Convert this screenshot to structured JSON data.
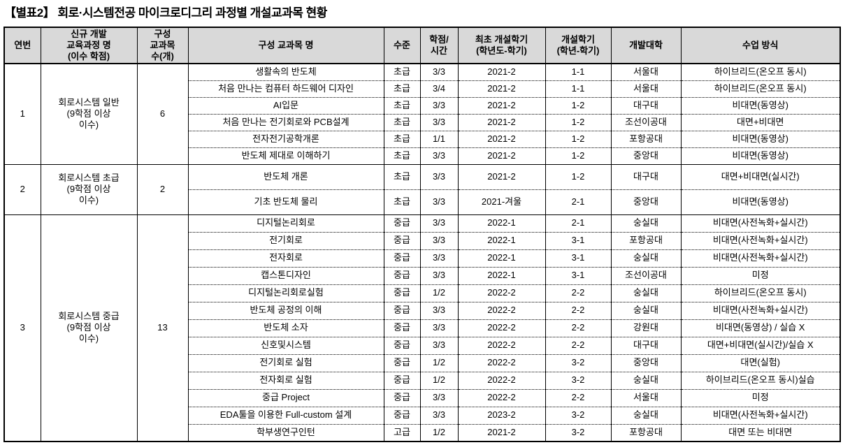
{
  "title": "【별표2】 회로·시스템전공 마이크로디그리 과정별 개설교과목 현황",
  "table": {
    "header": {
      "no": "연번",
      "program": "신규 개발\n교육과정 명\n(이수 학점)",
      "count": "구성\n교과목\n수(개)",
      "course": "구성 교과목 명",
      "level": "수준",
      "credit": "학점/\n시간",
      "first_term": "최초 개설학기\n(학년도-학기)",
      "term": "개설학기\n(학년-학기)",
      "univ": "개발대학",
      "method": "수업 방식"
    },
    "groups": [
      {
        "no": "1",
        "program": "회로시스템 일반\n(9학점 이상\n이수)",
        "count": "6",
        "courses": [
          {
            "name": "생활속의 반도체",
            "level": "초급",
            "credit": "3/3",
            "first_term": "2021-2",
            "term": "1-1",
            "univ": "서울대",
            "method": "하이브리드(온오프 동시)"
          },
          {
            "name": "처음 만나는 컴퓨터 하드웨어 디자인",
            "level": "초급",
            "credit": "3/4",
            "first_term": "2021-2",
            "term": "1-1",
            "univ": "서울대",
            "method": "하이브리드(온오프 동시)"
          },
          {
            "name": "AI입문",
            "level": "초급",
            "credit": "3/3",
            "first_term": "2021-2",
            "term": "1-2",
            "univ": "대구대",
            "method": "비대면(동영상)"
          },
          {
            "name": "처음 만나는 전기회로와 PCB설계",
            "level": "초급",
            "credit": "3/3",
            "first_term": "2021-2",
            "term": "1-2",
            "univ": "조선이공대",
            "method": "대면+비대면"
          },
          {
            "name": "전자전기공학개론",
            "level": "초급",
            "credit": "1/1",
            "first_term": "2021-2",
            "term": "1-2",
            "univ": "포항공대",
            "method": "비대면(동영상)"
          },
          {
            "name": "반도체 제대로 이해하기",
            "level": "초급",
            "credit": "3/3",
            "first_term": "2021-2",
            "term": "1-2",
            "univ": "중앙대",
            "method": "비대면(동영상)"
          }
        ]
      },
      {
        "no": "2",
        "program": "회로시스템 초급\n(9학점 이상\n이수)",
        "count": "2",
        "courses": [
          {
            "name": "반도체 개론",
            "level": "초급",
            "credit": "3/3",
            "first_term": "2021-2",
            "term": "1-2",
            "univ": "대구대",
            "method": "대면+비대면(실시간)"
          },
          {
            "name": "기초 반도체 물리",
            "level": "초급",
            "credit": "3/3",
            "first_term": "2021-겨울",
            "term": "2-1",
            "univ": "중앙대",
            "method": "비대면(동영상)"
          }
        ]
      },
      {
        "no": "3",
        "program": "회로시스템 중급\n(9학점 이상\n이수)",
        "count": "13",
        "courses": [
          {
            "name": "디지털논리회로",
            "level": "중급",
            "credit": "3/3",
            "first_term": "2022-1",
            "term": "2-1",
            "univ": "숭실대",
            "method": "비대면(사전녹화+실시간)"
          },
          {
            "name": "전기회로",
            "level": "중급",
            "credit": "3/3",
            "first_term": "2022-1",
            "term": "3-1",
            "univ": "포항공대",
            "method": "비대면(사전녹화+실시간)"
          },
          {
            "name": "전자회로",
            "level": "중급",
            "credit": "3/3",
            "first_term": "2022-1",
            "term": "3-1",
            "univ": "숭실대",
            "method": "비대면(사전녹화+실시간)"
          },
          {
            "name": "캡스톤디자인",
            "level": "중급",
            "credit": "3/3",
            "first_term": "2022-1",
            "term": "3-1",
            "univ": "조선이공대",
            "method": "미정"
          },
          {
            "name": "디지털논리회로실험",
            "level": "중급",
            "credit": "1/2",
            "first_term": "2022-2",
            "term": "2-2",
            "univ": "숭실대",
            "method": "하이브리드(온오프 동시)"
          },
          {
            "name": "반도체 공정의 이해",
            "level": "중급",
            "credit": "3/3",
            "first_term": "2022-2",
            "term": "2-2",
            "univ": "숭실대",
            "method": "비대면(사전녹화+실시간)"
          },
          {
            "name": "반도체 소자",
            "level": "중급",
            "credit": "3/3",
            "first_term": "2022-2",
            "term": "2-2",
            "univ": "강원대",
            "method": "비대면(동영상) / 실습 X"
          },
          {
            "name": "신호및시스템",
            "level": "중급",
            "credit": "3/3",
            "first_term": "2022-2",
            "term": "2-2",
            "univ": "대구대",
            "method": "대면+비대면(실시간)/실습 X"
          },
          {
            "name": "전기회로 실험",
            "level": "중급",
            "credit": "1/2",
            "first_term": "2022-2",
            "term": "3-2",
            "univ": "중앙대",
            "method": "대면(실험)"
          },
          {
            "name": "전자회로 실험",
            "level": "중급",
            "credit": "1/2",
            "first_term": "2022-2",
            "term": "3-2",
            "univ": "숭실대",
            "method": "하이브리드(온오프 동시)실습"
          },
          {
            "name": "중급 Project",
            "level": "중급",
            "credit": "3/3",
            "first_term": "2022-2",
            "term": "2-2",
            "univ": "서울대",
            "method": "미정"
          },
          {
            "name": "EDA툴을 이용한 Full-custom 설계",
            "level": "중급",
            "credit": "3/3",
            "first_term": "2023-2",
            "term": "3-2",
            "univ": "숭실대",
            "method": "비대면(사전녹화+실시간)"
          },
          {
            "name": "학부생연구인턴",
            "level": "고급",
            "credit": "1/2",
            "first_term": "2021-2",
            "term": "3-2",
            "univ": "포항공대",
            "method": "대면 또는 비대면"
          }
        ]
      }
    ]
  },
  "colors": {
    "header_bg": "#d9d9d9",
    "border": "#000000",
    "text": "#000000"
  }
}
